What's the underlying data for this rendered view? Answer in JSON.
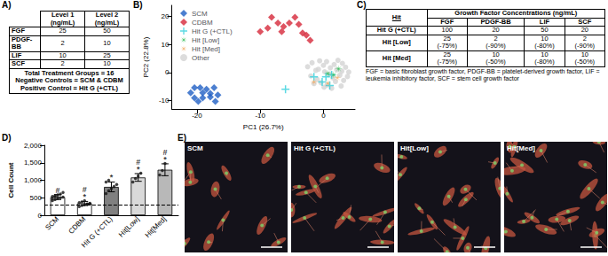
{
  "table_a": {
    "label": "A)",
    "columns": [
      "Level 1 (ng/mL)",
      "Level 2 (ng/mL)"
    ],
    "rows": [
      {
        "name": "FGF",
        "values": [
          25,
          50
        ]
      },
      {
        "name": "PDGF-BB",
        "values": [
          2,
          10
        ]
      },
      {
        "name": "LIF",
        "values": [
          10,
          25
        ]
      },
      {
        "name": "SCF",
        "values": [
          2,
          10
        ]
      }
    ],
    "notes": [
      "Total Treatment Groups = 16",
      "Negative Controls = SCM & CDBM",
      "Positive Control = Hit G (+CTL)"
    ]
  },
  "chart_data": [
    {
      "panel": "B)",
      "type": "scatter",
      "x_label": "PC1 (26.7%)",
      "y_label": "PC2 (22.8%)",
      "xlim": [
        -24,
        5
      ],
      "xticks": [
        -20,
        -10,
        0
      ],
      "ylim": [
        -13,
        24
      ],
      "yticks": [
        -10,
        0,
        10,
        20
      ],
      "grid": false,
      "legend": "upper left",
      "series": [
        {
          "name": "SCM",
          "color": "#1f5fc4",
          "marker": "diamond",
          "x": [
            -20.4,
            -19.5,
            -18.5,
            -17.3,
            -21.0,
            -19.1,
            -17.9,
            -16.7,
            -20.4,
            -19.1,
            -17.9,
            -19.8,
            -17.1
          ],
          "values": [
            -5.4,
            -5.4,
            -5.9,
            -5.4,
            -7.2,
            -7.2,
            -7.4,
            -8.0,
            -9.0,
            -9.0,
            -8.7,
            -10.3,
            -10.3
          ]
        },
        {
          "name": "CDBM",
          "color": "#d62839",
          "marker": "diamond",
          "x": [
            -10.0,
            -8.8,
            -8.2,
            -7.2,
            -6.3,
            -5.4,
            -4.5,
            -3.9,
            -3.3,
            -2.7,
            -2.1,
            -6.6
          ],
          "values": [
            14.6,
            15.9,
            19.7,
            17.7,
            16.4,
            17.7,
            19.7,
            17.2,
            14.1,
            13.3,
            11.5,
            14.6
          ]
        },
        {
          "name": "Hit G (+CTL)",
          "color": "#33d0dc",
          "marker": "plus",
          "x": [
            -6.0,
            -1.5,
            -0.2,
            1.3,
            1.0,
            0.4
          ],
          "values": [
            -5.9,
            -1.5,
            -3.3,
            -0.8,
            -4.6,
            -1.5
          ]
        },
        {
          "name": "Hit [Low]",
          "color": "#22b84a",
          "marker": "asterisk",
          "x": [
            1.6,
            2.4,
            0.7
          ],
          "values": [
            -0.8,
            1.3,
            -0.3
          ]
        },
        {
          "name": "Hit [Med]",
          "color": "#f2a65a",
          "marker": "asterisk",
          "x": [
            -1.5,
            0.7,
            2.2
          ],
          "values": [
            -3.3,
            -3.8,
            -1.8
          ]
        },
        {
          "name": "Other",
          "color": "#d3d3d3",
          "marker": "circle",
          "x": [
            -2.5,
            -1.8,
            -1.2,
            -0.6,
            0.0,
            0.5,
            1.1,
            1.7,
            2.3,
            2.9,
            3.5,
            -2.0,
            -1.0,
            0.2,
            0.9,
            1.5,
            2.6,
            3.2,
            -0.4,
            0.6,
            1.9,
            2.8,
            3.8,
            -1.5,
            0.1,
            1.3,
            2.1,
            3.0,
            4.0,
            -0.8
          ],
          "values": [
            2.1,
            3.5,
            0.8,
            4.2,
            2.6,
            3.9,
            1.7,
            2.9,
            4.4,
            0.5,
            1.9,
            -1.2,
            -2.4,
            0.3,
            -0.6,
            -1.9,
            -0.9,
            -2.8,
            -3.6,
            -4.4,
            -3.2,
            -4.8,
            -1.4,
            -3.9,
            -5.2,
            -5.6,
            1.0,
            3.3,
            0.2,
            1.2
          ]
        }
      ]
    },
    {
      "panel": "D)",
      "type": "bar",
      "y_label": "Cell Count",
      "categories": [
        "SCM",
        "CDBM",
        "Hit G (+CTL)",
        "Hit[Low]",
        "Hit[Med]"
      ],
      "values": [
        520,
        340,
        810,
        1080,
        1300
      ],
      "errors": [
        70,
        55,
        140,
        110,
        170
      ],
      "colors": [
        "#ffffff",
        "#ffffff",
        "#808080",
        "#d9d9d9",
        "#b8b8b8"
      ],
      "points": [
        [
          420,
          450,
          480,
          500,
          520,
          540,
          560,
          580,
          610,
          650,
          470,
          530
        ],
        [
          250,
          280,
          300,
          320,
          340,
          360,
          380,
          420,
          310,
          330
        ],
        [
          620,
          700,
          760,
          820,
          880,
          950,
          1000
        ],
        [
          950,
          1050,
          1120,
          1200
        ],
        [
          1150,
          1280,
          1480
        ]
      ],
      "reference_line": 300,
      "annotations": [
        [
          "#"
        ],
        [
          "#",
          "*"
        ],
        [
          "*"
        ],
        [
          "#",
          "*"
        ],
        [
          "#",
          "*"
        ]
      ],
      "ylim": [
        0,
        2000
      ],
      "yticks": [
        0,
        500,
        1000,
        1500,
        2000
      ],
      "grid": false
    }
  ],
  "table_c": {
    "label": "C)",
    "header": "Hit",
    "group_header": "Growth Factor Concentrations (ng/mL)",
    "columns": [
      "FGF",
      "PDGF-BB",
      "LIF",
      "SCF"
    ],
    "rows": [
      {
        "name": "Hit G (+CTL)",
        "cells": [
          {
            "value": 100
          },
          {
            "value": 20
          },
          {
            "value": 50
          },
          {
            "value": 20
          }
        ]
      },
      {
        "name": "Hit [Low]",
        "cells": [
          {
            "value": 25,
            "change": "(-75%)"
          },
          {
            "value": 2,
            "change": "(-90%)"
          },
          {
            "value": 10,
            "change": "(-80%)"
          },
          {
            "value": 2,
            "change": "(-90%)"
          }
        ]
      },
      {
        "name": "Hit [Med]",
        "cells": [
          {
            "value": 25,
            "change": "(-75%)"
          },
          {
            "value": 10,
            "change": "(-50%)"
          },
          {
            "value": 10,
            "change": "(-80%)"
          },
          {
            "value": 10,
            "change": "(-50%)"
          }
        ]
      }
    ],
    "footnote": "FGF = basic fibroblast growth factor, PDGF-BB = platelet-derived growth factor, LIF = leukemia inhibitory factor, SCF = stem cell growth factor"
  },
  "images_e": {
    "label": "E)",
    "panels": [
      "SCM",
      "Hit G (+CTL)",
      "Hit[Low]",
      "Hit[Med]"
    ]
  }
}
